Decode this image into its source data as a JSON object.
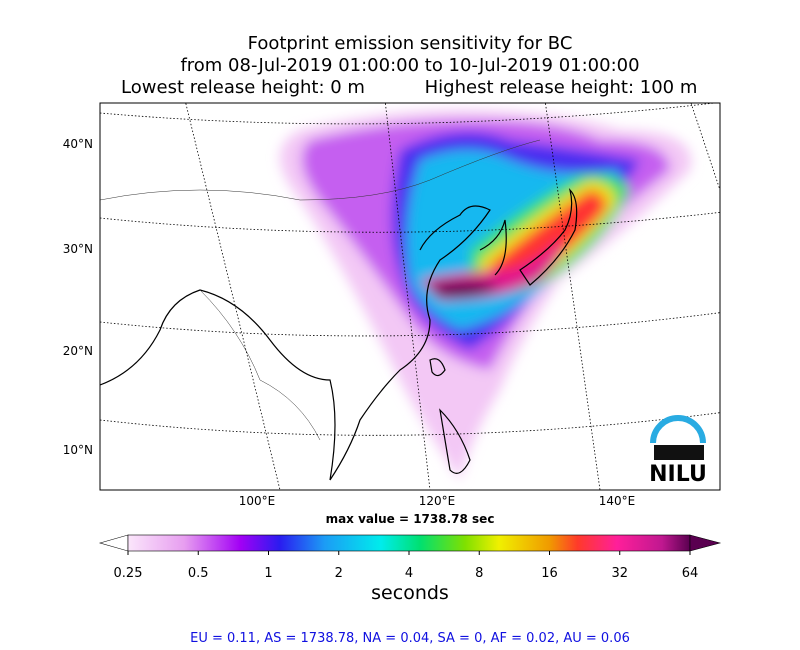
{
  "title": {
    "line1": "Footprint emission sensitivity for BC",
    "line2": "from 08-Jul-2019 01:00:00 to 10-Jul-2019 01:00:00",
    "line3_left": "Lowest release height: 0 m",
    "line3_right": "Highest release height: 100 m"
  },
  "map": {
    "lat_labels": [
      "40°N",
      "30°N",
      "20°N",
      "10°N"
    ],
    "lon_labels": [
      "100°E",
      "120°E",
      "140°E"
    ],
    "max_value": "max value = 1738.78 sec",
    "logo": "NILU"
  },
  "colorbar": {
    "ticks": [
      "0.25",
      "0.5",
      "1",
      "2",
      "4",
      "8",
      "16",
      "32",
      "64"
    ],
    "label": "seconds"
  },
  "footer": "EU = 0.11,  AS = 1738.78,  NA = 0.04,  SA = 0,  AF = 0.02,  AU = 0.06"
}
